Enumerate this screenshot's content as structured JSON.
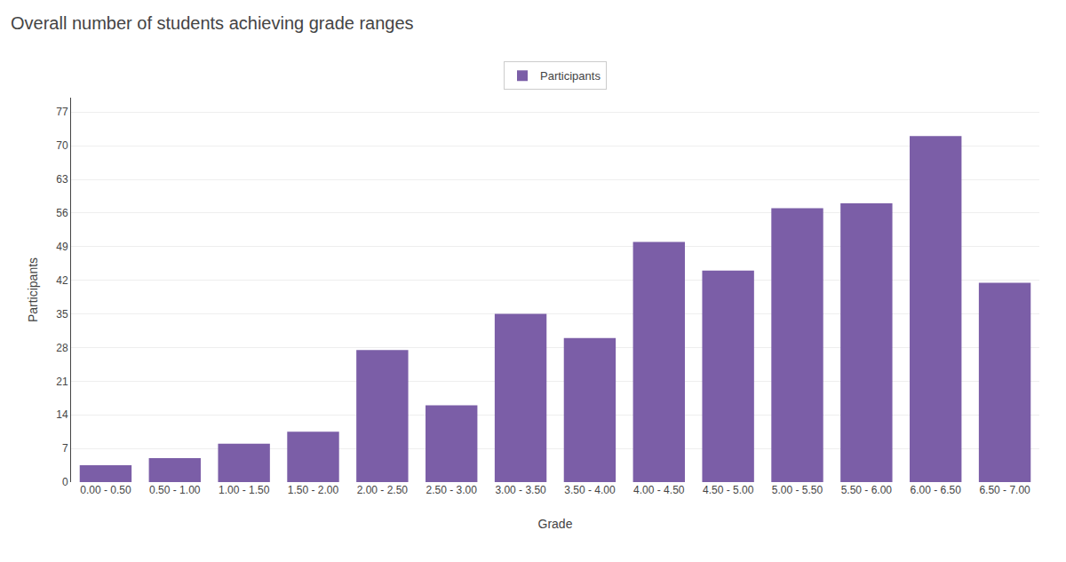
{
  "chart_data": {
    "type": "bar",
    "title": "Overall number of students achieving grade ranges",
    "xlabel": "Grade",
    "ylabel": "Participants",
    "categories": [
      "0.00 - 0.50",
      "0.50 - 1.00",
      "1.00 - 1.50",
      "1.50 - 2.00",
      "2.00 - 2.50",
      "2.50 - 3.00",
      "3.00 - 3.50",
      "3.50 - 4.00",
      "4.00 - 4.50",
      "4.50 - 5.00",
      "5.00 - 5.50",
      "5.50 - 6.00",
      "6.00 - 6.50",
      "6.50 - 7.00"
    ],
    "series": [
      {
        "name": "Participants",
        "color": "#7B5EA7",
        "values": [
          3.5,
          5,
          8,
          10.5,
          27.5,
          16,
          35,
          30,
          50,
          44,
          57,
          58,
          72,
          41.5
        ]
      }
    ],
    "ylim": [
      0,
      80
    ],
    "yticks": [
      0,
      7,
      14,
      21,
      28,
      35,
      42,
      49,
      56,
      63,
      70,
      77
    ],
    "grid": true,
    "legend": "top"
  }
}
